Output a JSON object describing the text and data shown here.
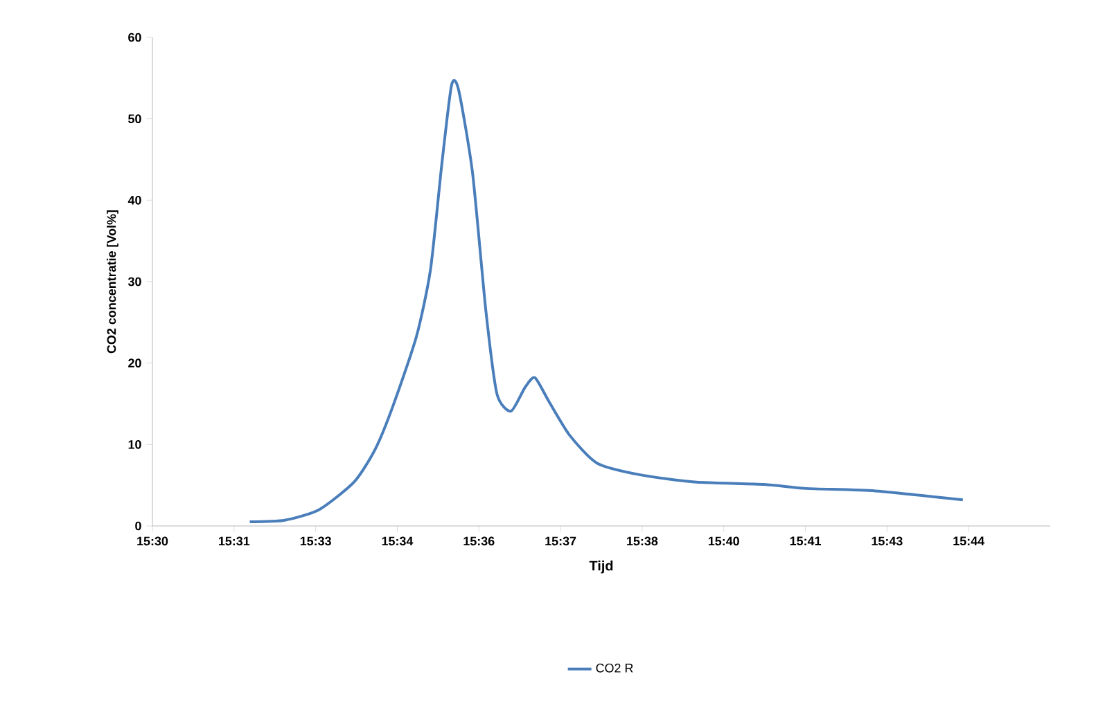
{
  "chart_data": {
    "type": "line",
    "xlabel": "Tijd",
    "ylabel": "CO2 concentratie [Vol%]",
    "xlim": [
      15.5,
      15.75667
    ],
    "ylim": [
      0,
      60
    ],
    "xticks": [
      {
        "value": 15.5,
        "label": "15:30"
      },
      {
        "value": 15.52333,
        "label": "15:31"
      },
      {
        "value": 15.54667,
        "label": "15:33"
      },
      {
        "value": 15.57,
        "label": "15:34"
      },
      {
        "value": 15.59333,
        "label": "15:36"
      },
      {
        "value": 15.61667,
        "label": "15:37"
      },
      {
        "value": 15.64,
        "label": "15:38"
      },
      {
        "value": 15.66333,
        "label": "15:40"
      },
      {
        "value": 15.68667,
        "label": "15:41"
      },
      {
        "value": 15.71,
        "label": "15:43"
      },
      {
        "value": 15.73333,
        "label": "15:44"
      }
    ],
    "yticks": [
      0,
      10,
      20,
      30,
      40,
      50,
      60
    ],
    "legend": "bottom",
    "grid": false,
    "marker": "none",
    "line_style": "solid",
    "series": [
      {
        "name": "CO2 R",
        "color": "#4a7ebb",
        "x": [
          15.52783,
          15.53783,
          15.54767,
          15.55767,
          15.56367,
          15.56883,
          15.5755,
          15.5795,
          15.58267,
          15.5855,
          15.5875,
          15.5915,
          15.59533,
          15.5985,
          15.6025,
          15.6065,
          15.60933,
          15.61333,
          15.61933,
          15.62717,
          15.63917,
          15.655,
          15.67483,
          15.68683,
          15.70667,
          15.73167
        ],
        "values": [
          0.5,
          0.7,
          2.0,
          5.4,
          9.4,
          14.8,
          23.3,
          31.5,
          44.2,
          54.1,
          53.6,
          43.4,
          26.4,
          16.2,
          14.1,
          17.0,
          18.2,
          15.3,
          11.1,
          7.7,
          6.3,
          5.4,
          5.1,
          4.6,
          4.3,
          3.2
        ]
      }
    ]
  }
}
